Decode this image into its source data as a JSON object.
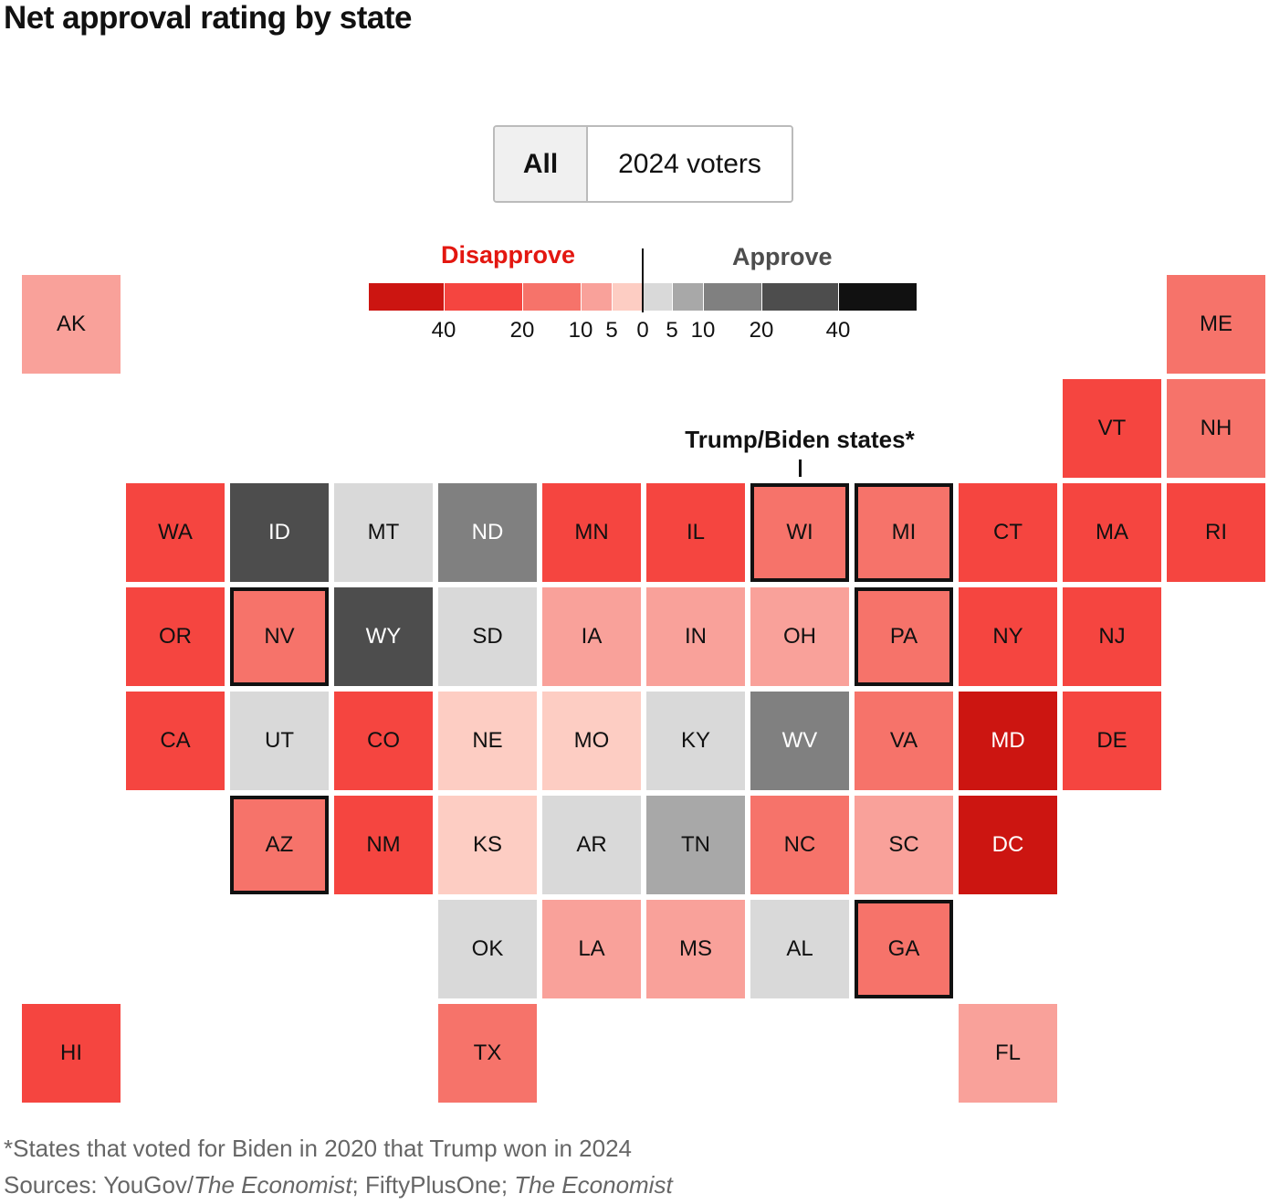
{
  "title": "Net approval rating by state",
  "toggle": {
    "options": [
      "All",
      "2024 voters"
    ],
    "selected": "All"
  },
  "chart_data": {
    "type": "heatmap",
    "subtype": "tile-grid-map",
    "legend": {
      "disapprove_label": "Disapprove",
      "approve_label": "Approve",
      "disapprove_color": "#e31710",
      "approve_color": "#4d4d4d",
      "tick_labels": [
        "40",
        "20",
        "10",
        "5",
        "0",
        "5",
        "10",
        "20",
        "40"
      ],
      "bins": [
        {
          "range": "Disapprove >40",
          "color": "#cc1511"
        },
        {
          "range": "Disapprove 20–40",
          "color": "#f54540"
        },
        {
          "range": "Disapprove 10–20",
          "color": "#f6736a"
        },
        {
          "range": "Disapprove 5–10",
          "color": "#f9a19a"
        },
        {
          "range": "Disapprove 0–5",
          "color": "#fdcdc3"
        },
        {
          "range": "Approve 0–5",
          "color": "#d9d9d9"
        },
        {
          "range": "Approve 5–10",
          "color": "#a8a8a8"
        },
        {
          "range": "Approve 10–20",
          "color": "#808080"
        },
        {
          "range": "Approve 20–40",
          "color": "#4d4d4d"
        },
        {
          "range": "Approve >40",
          "color": "#111111"
        }
      ]
    },
    "annotation": "Trump/Biden states*",
    "states": [
      {
        "abbr": "AK",
        "bin": 3,
        "row": 0,
        "col": 0
      },
      {
        "abbr": "ME",
        "bin": 2,
        "row": 0,
        "col": 11
      },
      {
        "abbr": "VT",
        "bin": 1,
        "row": 1,
        "col": 10
      },
      {
        "abbr": "NH",
        "bin": 2,
        "row": 1,
        "col": 11
      },
      {
        "abbr": "WA",
        "bin": 1,
        "row": 2,
        "col": 1
      },
      {
        "abbr": "ID",
        "bin": 8,
        "row": 2,
        "col": 2
      },
      {
        "abbr": "MT",
        "bin": 5,
        "row": 2,
        "col": 3
      },
      {
        "abbr": "ND",
        "bin": 7,
        "row": 2,
        "col": 4
      },
      {
        "abbr": "MN",
        "bin": 1,
        "row": 2,
        "col": 5
      },
      {
        "abbr": "IL",
        "bin": 1,
        "row": 2,
        "col": 6
      },
      {
        "abbr": "WI",
        "bin": 2,
        "row": 2,
        "col": 7,
        "trump_biden": true
      },
      {
        "abbr": "MI",
        "bin": 2,
        "row": 2,
        "col": 8,
        "trump_biden": true
      },
      {
        "abbr": "CT",
        "bin": 1,
        "row": 2,
        "col": 9
      },
      {
        "abbr": "MA",
        "bin": 1,
        "row": 2,
        "col": 10
      },
      {
        "abbr": "RI",
        "bin": 1,
        "row": 2,
        "col": 11
      },
      {
        "abbr": "OR",
        "bin": 1,
        "row": 3,
        "col": 1
      },
      {
        "abbr": "NV",
        "bin": 2,
        "row": 3,
        "col": 2,
        "trump_biden": true
      },
      {
        "abbr": "WY",
        "bin": 8,
        "row": 3,
        "col": 3
      },
      {
        "abbr": "SD",
        "bin": 5,
        "row": 3,
        "col": 4
      },
      {
        "abbr": "IA",
        "bin": 3,
        "row": 3,
        "col": 5
      },
      {
        "abbr": "IN",
        "bin": 3,
        "row": 3,
        "col": 6
      },
      {
        "abbr": "OH",
        "bin": 3,
        "row": 3,
        "col": 7
      },
      {
        "abbr": "PA",
        "bin": 2,
        "row": 3,
        "col": 8,
        "trump_biden": true
      },
      {
        "abbr": "NY",
        "bin": 1,
        "row": 3,
        "col": 9
      },
      {
        "abbr": "NJ",
        "bin": 1,
        "row": 3,
        "col": 10
      },
      {
        "abbr": "CA",
        "bin": 1,
        "row": 4,
        "col": 1
      },
      {
        "abbr": "UT",
        "bin": 5,
        "row": 4,
        "col": 2
      },
      {
        "abbr": "CO",
        "bin": 1,
        "row": 4,
        "col": 3
      },
      {
        "abbr": "NE",
        "bin": 4,
        "row": 4,
        "col": 4
      },
      {
        "abbr": "MO",
        "bin": 4,
        "row": 4,
        "col": 5
      },
      {
        "abbr": "KY",
        "bin": 5,
        "row": 4,
        "col": 6
      },
      {
        "abbr": "WV",
        "bin": 7,
        "row": 4,
        "col": 7
      },
      {
        "abbr": "VA",
        "bin": 2,
        "row": 4,
        "col": 8
      },
      {
        "abbr": "MD",
        "bin": 0,
        "row": 4,
        "col": 9
      },
      {
        "abbr": "DE",
        "bin": 1,
        "row": 4,
        "col": 10
      },
      {
        "abbr": "AZ",
        "bin": 2,
        "row": 5,
        "col": 2,
        "trump_biden": true
      },
      {
        "abbr": "NM",
        "bin": 1,
        "row": 5,
        "col": 3
      },
      {
        "abbr": "KS",
        "bin": 4,
        "row": 5,
        "col": 4
      },
      {
        "abbr": "AR",
        "bin": 5,
        "row": 5,
        "col": 5
      },
      {
        "abbr": "TN",
        "bin": 6,
        "row": 5,
        "col": 6
      },
      {
        "abbr": "NC",
        "bin": 2,
        "row": 5,
        "col": 7
      },
      {
        "abbr": "SC",
        "bin": 3,
        "row": 5,
        "col": 8
      },
      {
        "abbr": "DC",
        "bin": 0,
        "row": 5,
        "col": 9
      },
      {
        "abbr": "OK",
        "bin": 5,
        "row": 6,
        "col": 4
      },
      {
        "abbr": "LA",
        "bin": 3,
        "row": 6,
        "col": 5
      },
      {
        "abbr": "MS",
        "bin": 3,
        "row": 6,
        "col": 6
      },
      {
        "abbr": "AL",
        "bin": 5,
        "row": 6,
        "col": 7
      },
      {
        "abbr": "GA",
        "bin": 2,
        "row": 6,
        "col": 8,
        "trump_biden": true
      },
      {
        "abbr": "HI",
        "bin": 1,
        "row": 7,
        "col": 0
      },
      {
        "abbr": "TX",
        "bin": 2,
        "row": 7,
        "col": 4
      },
      {
        "abbr": "FL",
        "bin": 3,
        "row": 7,
        "col": 9
      }
    ]
  },
  "footnote": "*States that voted for Biden in 2020 that Trump won in 2024",
  "sources": {
    "prefix": "Sources: YouGov/",
    "src1": "The Economist",
    "mid": "; FiftyPlusOne; ",
    "src2": "The Economist"
  }
}
